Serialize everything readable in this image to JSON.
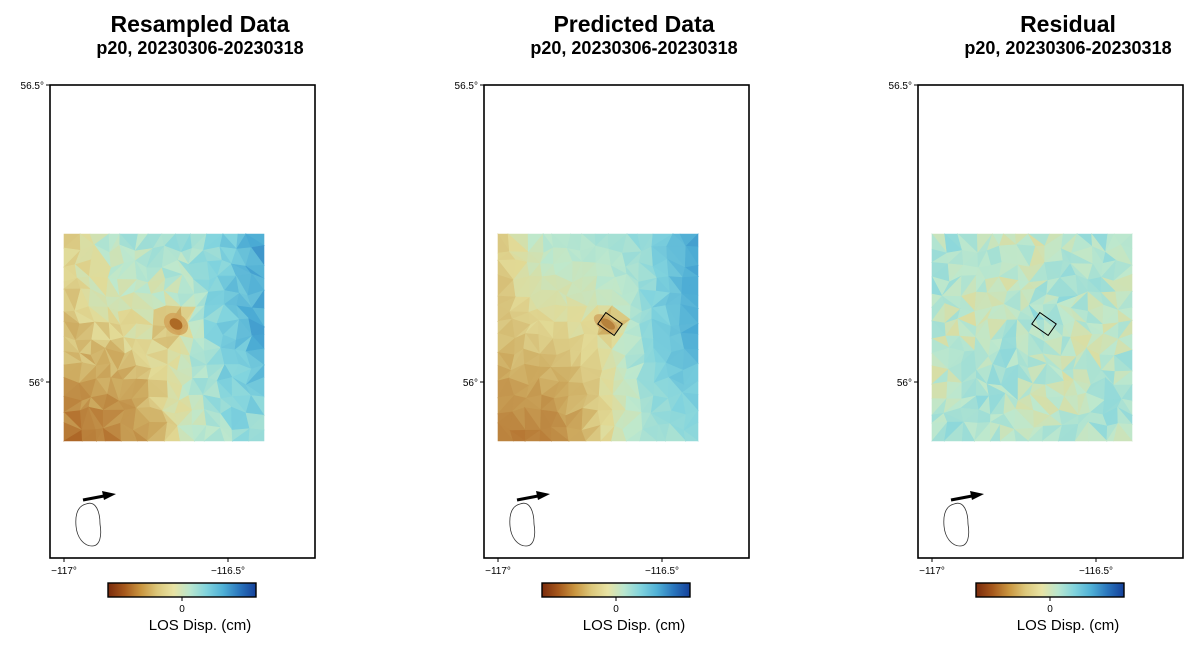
{
  "panels": [
    {
      "title": "Resampled Data",
      "subtitle": "p20, 20230306-20230318",
      "box": false
    },
    {
      "title": "Predicted Data",
      "subtitle": "p20, 20230306-20230318",
      "box": true
    },
    {
      "title": "Residual",
      "subtitle": "p20, 20230306-20230318",
      "box": true
    }
  ],
  "axes": {
    "lat_top": "56.5°",
    "lat_mid": "56°",
    "lon_left": "−117°",
    "lon_right": "−116.5°"
  },
  "colorbar": {
    "tick": "0",
    "label": "LOS Disp. (cm)",
    "colors": [
      "#7a2b0c",
      "#a6581c",
      "#c9953f",
      "#dcc77a",
      "#e8e3a4",
      "#b9e6cf",
      "#80d3dd",
      "#4fb0d6",
      "#2a76bd",
      "#14409a"
    ]
  }
}
